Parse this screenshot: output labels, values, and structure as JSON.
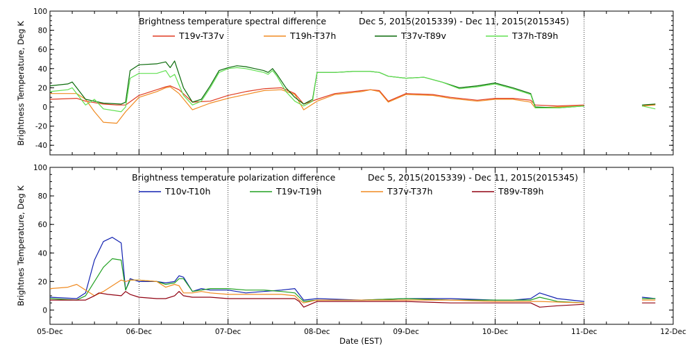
{
  "chart_data": [
    {
      "type": "line",
      "title": "Brightness temperature spectral difference",
      "subtitle": "Dec  5, 2015(2015339) - Dec 11, 2015(2015345)",
      "ylabel": "Brightness Temperature, Deg K",
      "xlabel": "",
      "ylim": [
        -50,
        100
      ],
      "xlim": [
        0,
        7
      ],
      "yticks": [
        "-40",
        "-20",
        "0",
        "20",
        "40",
        "60",
        "80",
        "100"
      ],
      "ytick_values": [
        -40,
        -20,
        0,
        20,
        40,
        60,
        80,
        100
      ],
      "grid": "vertical dotted at day boundaries",
      "legend_position": "top",
      "series": [
        {
          "name": "T19v-T37v",
          "color": "#e03a20",
          "x": [
            0,
            0.3,
            0.4,
            0.6,
            0.75,
            0.85,
            1.0,
            1.2,
            1.3,
            1.35,
            1.45,
            1.6,
            1.8,
            2.0,
            2.2,
            2.4,
            2.6,
            2.75,
            2.85,
            3.0,
            3.2,
            3.5,
            3.6,
            3.7,
            3.8,
            4.0,
            4.3,
            4.5,
            4.8,
            5.0,
            5.2,
            5.4,
            5.45,
            5.7,
            6.0,
            6.4,
            6.5,
            6.65,
            6.8,
            7.0
          ],
          "y": [
            8,
            9,
            6,
            3,
            2,
            2,
            12,
            18,
            21,
            22,
            18,
            5,
            6,
            12,
            16,
            19,
            20,
            14,
            3,
            8,
            14,
            17,
            18,
            17,
            6,
            14,
            13,
            10,
            7,
            9,
            9,
            7,
            2,
            1,
            2,
            2,
            1,
            1,
            3,
            3
          ]
        },
        {
          "name": "T19h-T37h",
          "color": "#f08a20",
          "x": [
            0,
            0.3,
            0.4,
            0.5,
            0.6,
            0.75,
            0.85,
            1.0,
            1.2,
            1.3,
            1.35,
            1.45,
            1.6,
            1.8,
            2.0,
            2.2,
            2.4,
            2.6,
            2.75,
            2.85,
            3.0,
            3.2,
            3.5,
            3.6,
            3.7,
            3.8,
            4.0,
            4.3,
            4.5,
            4.8,
            5.0,
            5.2,
            5.4,
            5.45,
            5.7,
            6.0,
            6.4,
            6.5,
            6.65,
            6.8,
            7.0
          ],
          "y": [
            14,
            14,
            8,
            -5,
            -16,
            -17,
            -5,
            10,
            16,
            20,
            21,
            14,
            -3,
            4,
            9,
            13,
            17,
            18,
            13,
            -3,
            6,
            13,
            16,
            18,
            16,
            5,
            13,
            12,
            9,
            6,
            8,
            8,
            5,
            -1,
            0,
            1,
            1,
            0,
            1,
            2,
            2
          ]
        },
        {
          "name": "T37v-T89v",
          "color": "#0a6a0a",
          "x": [
            0,
            0.2,
            0.25,
            0.3,
            0.4,
            0.6,
            0.8,
            0.85,
            0.9,
            1.0,
            1.2,
            1.3,
            1.35,
            1.4,
            1.5,
            1.6,
            1.7,
            1.8,
            1.9,
            2.0,
            2.1,
            2.2,
            2.3,
            2.4,
            2.45,
            2.5,
            2.55,
            2.65,
            2.75,
            2.85,
            2.95,
            3.0,
            3.2,
            3.4,
            3.6,
            3.7,
            3.8,
            4.0,
            4.2,
            4.4,
            4.6,
            4.8,
            5.0,
            5.2,
            5.4,
            5.45,
            5.7,
            6.0,
            6.4,
            6.5,
            6.65,
            6.8,
            7.0
          ],
          "y": [
            22,
            24,
            26,
            20,
            8,
            4,
            3,
            5,
            38,
            44,
            45,
            47,
            41,
            48,
            20,
            5,
            8,
            22,
            38,
            41,
            43,
            42,
            40,
            38,
            36,
            40,
            34,
            20,
            10,
            3,
            8,
            36,
            36,
            37,
            37,
            36,
            32,
            30,
            31,
            26,
            20,
            22,
            25,
            20,
            14,
            0,
            -1,
            1,
            1,
            0,
            2,
            3,
            1
          ]
        },
        {
          "name": "T37h-T89h",
          "color": "#60e050",
          "x": [
            0,
            0.2,
            0.25,
            0.3,
            0.4,
            0.5,
            0.6,
            0.8,
            0.85,
            0.9,
            1.0,
            1.2,
            1.3,
            1.35,
            1.4,
            1.5,
            1.6,
            1.7,
            1.8,
            1.9,
            2.0,
            2.1,
            2.2,
            2.3,
            2.4,
            2.45,
            2.5,
            2.55,
            2.65,
            2.75,
            2.85,
            2.95,
            3.0,
            3.2,
            3.4,
            3.6,
            3.7,
            3.8,
            4.0,
            4.2,
            4.4,
            4.6,
            4.8,
            5.0,
            5.2,
            5.4,
            5.45,
            5.7,
            6.0,
            6.4,
            6.5,
            6.65,
            6.8,
            7.0
          ],
          "y": [
            16,
            18,
            20,
            14,
            2,
            8,
            -2,
            -5,
            0,
            30,
            35,
            35,
            38,
            31,
            34,
            12,
            2,
            6,
            20,
            36,
            40,
            41,
            40,
            38,
            36,
            34,
            38,
            32,
            16,
            6,
            1,
            6,
            36,
            36,
            37,
            37,
            36,
            32,
            30,
            31,
            26,
            19,
            21,
            24,
            19,
            13,
            -1,
            -1,
            1,
            1,
            -10,
            1,
            -2,
            -3
          ]
        }
      ]
    },
    {
      "type": "line",
      "title": "Brightness temperature polarization difference",
      "subtitle": "Dec  5, 2015(2015339) - Dec 11, 2015(2015345)",
      "ylabel": "Brightnes Temperature, Deg K",
      "xlabel": "Date (EST)",
      "ylim": [
        -10,
        100
      ],
      "xlim": [
        0,
        7
      ],
      "yticks": [
        "0",
        "20",
        "40",
        "60",
        "80",
        "100"
      ],
      "ytick_values": [
        0,
        20,
        40,
        60,
        80,
        100
      ],
      "xticks": [
        "05-Dec",
        "06-Dec",
        "07-Dec",
        "08-Dec",
        "09-Dec",
        "10-Dec",
        "11-Dec",
        "12-Dec"
      ],
      "grid": "vertical dotted at day boundaries",
      "legend_position": "top",
      "series": [
        {
          "name": "T10v-T10h",
          "color": "#1020b0",
          "x": [
            0,
            0.3,
            0.4,
            0.5,
            0.6,
            0.7,
            0.8,
            0.85,
            0.9,
            1.0,
            1.2,
            1.3,
            1.4,
            1.45,
            1.5,
            1.6,
            1.7,
            1.8,
            2.0,
            2.2,
            2.4,
            2.6,
            2.75,
            2.8,
            2.85,
            3.0,
            3.5,
            4.0,
            4.5,
            5.0,
            5.2,
            5.4,
            5.5,
            5.7,
            6.0,
            6.4,
            6.5,
            6.65,
            6.8,
            7.0
          ],
          "y": [
            9,
            8,
            12,
            35,
            48,
            51,
            47,
            14,
            22,
            20,
            20,
            19,
            20,
            24,
            23,
            13,
            15,
            14,
            14,
            12,
            13,
            14,
            15,
            11,
            7,
            8,
            7,
            8,
            8,
            7,
            7,
            8,
            12,
            8,
            6,
            5,
            5,
            9,
            8,
            7
          ]
        },
        {
          "name": "T19v-T19h",
          "color": "#20a020",
          "x": [
            0,
            0.3,
            0.4,
            0.5,
            0.6,
            0.7,
            0.8,
            0.85,
            0.9,
            1.0,
            1.2,
            1.3,
            1.4,
            1.45,
            1.5,
            1.6,
            1.7,
            1.8,
            2.0,
            2.2,
            2.4,
            2.6,
            2.75,
            2.8,
            2.85,
            3.0,
            3.5,
            4.0,
            4.5,
            5.0,
            5.2,
            5.4,
            5.5,
            5.7,
            6.0,
            6.4,
            6.5,
            6.65,
            6.8,
            7.0
          ],
          "y": [
            8,
            7,
            10,
            20,
            30,
            36,
            35,
            14,
            21,
            21,
            20,
            18,
            19,
            22,
            22,
            13,
            14,
            15,
            15,
            14,
            14,
            13,
            12,
            9,
            6,
            7,
            7,
            8,
            7,
            7,
            7,
            7,
            9,
            6,
            5,
            4,
            4,
            8,
            8,
            6
          ]
        },
        {
          "name": "T37v-T37h",
          "color": "#f08a20",
          "x": [
            0,
            0.2,
            0.3,
            0.4,
            0.5,
            0.6,
            0.7,
            0.8,
            0.85,
            0.9,
            1.0,
            1.2,
            1.3,
            1.4,
            1.45,
            1.5,
            1.6,
            1.7,
            1.8,
            2.0,
            2.2,
            2.4,
            2.6,
            2.75,
            2.8,
            2.85,
            3.0,
            3.5,
            4.0,
            4.5,
            5.0,
            5.5,
            6.0,
            6.4,
            6.5,
            6.65,
            6.8,
            7.0
          ],
          "y": [
            15,
            16,
            18,
            14,
            10,
            13,
            17,
            21,
            20,
            21,
            21,
            20,
            16,
            18,
            17,
            12,
            12,
            13,
            12,
            11,
            11,
            11,
            11,
            10,
            7,
            5,
            7,
            7,
            7,
            7,
            6,
            6,
            5,
            4,
            4,
            7,
            7,
            5
          ]
        },
        {
          "name": "T89v-T89h",
          "color": "#900010",
          "x": [
            0,
            0.3,
            0.4,
            0.5,
            0.55,
            0.65,
            0.8,
            0.85,
            0.9,
            1.0,
            1.2,
            1.3,
            1.4,
            1.45,
            1.5,
            1.6,
            1.8,
            2.0,
            2.2,
            2.4,
            2.6,
            2.75,
            2.8,
            2.85,
            3.0,
            3.5,
            4.0,
            4.5,
            5.0,
            5.4,
            5.5,
            5.7,
            6.0,
            6.4,
            6.5,
            6.65,
            6.8,
            7.0
          ],
          "y": [
            7,
            7,
            7,
            10,
            12,
            11,
            10,
            13,
            11,
            9,
            8,
            8,
            10,
            13,
            10,
            9,
            9,
            8,
            8,
            8,
            8,
            8,
            6,
            2,
            6,
            6,
            6,
            5,
            5,
            5,
            2,
            3,
            4,
            3,
            -2,
            5,
            5,
            3
          ]
        }
      ]
    }
  ]
}
